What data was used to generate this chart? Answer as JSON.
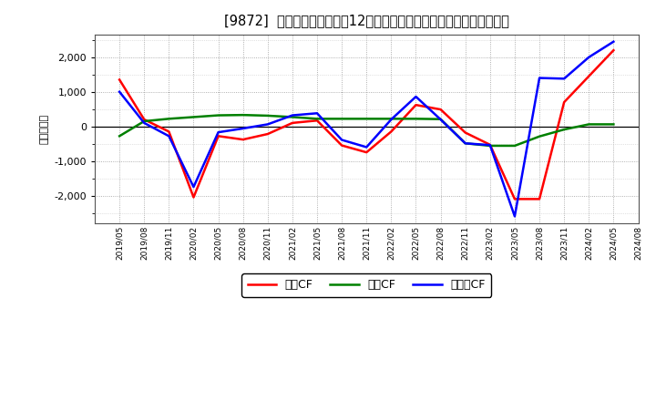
{
  "title": "[9872]  キャッシュフローの12か月移動合計の対前年同期増減額の推移",
  "ylabel": "（百万円）",
  "x_labels": [
    "2019/05",
    "2019/08",
    "2019/11",
    "2020/02",
    "2020/05",
    "2020/08",
    "2020/11",
    "2021/02",
    "2021/05",
    "2021/08",
    "2021/11",
    "2022/02",
    "2022/05",
    "2022/08",
    "2022/11",
    "2023/02",
    "2023/05",
    "2023/08",
    "2023/11",
    "2024/02",
    "2024/05",
    "2024/08"
  ],
  "operating_cf": [
    1350,
    200,
    -150,
    -2050,
    -280,
    -380,
    -220,
    100,
    170,
    -550,
    -750,
    -150,
    620,
    490,
    -180,
    -530,
    -2100,
    -2100,
    700,
    1450,
    2200,
    null
  ],
  "investing_cf": [
    -280,
    150,
    220,
    270,
    320,
    330,
    310,
    270,
    220,
    220,
    220,
    220,
    220,
    210,
    -490,
    -560,
    -560,
    -290,
    -90,
    60,
    60,
    null
  ],
  "free_cf": [
    1000,
    100,
    -280,
    -1750,
    -170,
    -60,
    60,
    320,
    380,
    -390,
    -600,
    200,
    860,
    200,
    -490,
    -540,
    -2600,
    1400,
    1380,
    2000,
    2450,
    null
  ],
  "operating_color": "#ff0000",
  "investing_color": "#008000",
  "free_color": "#0000ff",
  "bg_color": "#ffffff",
  "plot_bg_color": "#ffffff",
  "grid_color": "#aaaaaa",
  "ylim": [
    -2800,
    2650
  ],
  "yticks": [
    -2000,
    -1000,
    0,
    1000,
    2000
  ],
  "legend_labels": [
    "営業CF",
    "投資CF",
    "フリーCF"
  ]
}
